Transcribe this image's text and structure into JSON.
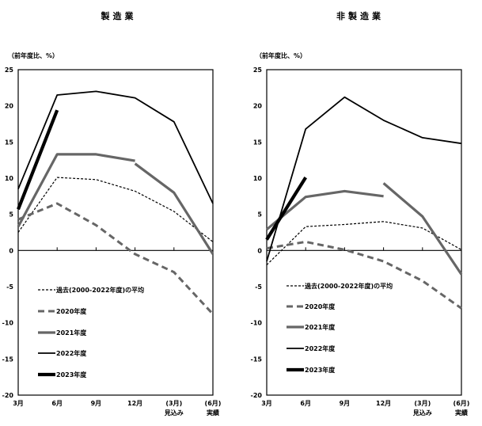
{
  "chart_data": [
    {
      "type": "line",
      "title": "製造業",
      "ylabel": "（前年度比、%）",
      "ylim": [
        -20,
        25
      ],
      "yticks": [
        "25",
        "20",
        "15",
        "10",
        "5",
        "0",
        "-5",
        "-10",
        "-15",
        "-20"
      ],
      "categories": [
        "3月",
        "6月",
        "9月",
        "12月",
        "(3月)",
        "(6月)"
      ],
      "category_sublabels": [
        "",
        "",
        "",
        "",
        "見込み",
        "実績"
      ],
      "grid": false,
      "legend_position": "bottom-left inside",
      "series": [
        {
          "name": "過去(2000-2022年度)の平均",
          "style": "dash-thin",
          "color": "#000000",
          "segments": [
            [
              2.5,
              10.1,
              9.8,
              8.2,
              5.4,
              1.2
            ]
          ]
        },
        {
          "name": "2020年度",
          "style": "dash-thick",
          "color": "#666666",
          "segments": [
            [
              4.3,
              6.5,
              3.5,
              -0.5,
              -3.0,
              -8.8
            ]
          ]
        },
        {
          "name": "2021年度",
          "style": "solid-thick",
          "color": "#666666",
          "segments": [
            [
              3.3,
              13.3,
              13.3,
              12.4,
              null,
              null
            ],
            [
              null,
              null,
              null,
              12.0,
              8.0,
              -0.5
            ]
          ]
        },
        {
          "name": "2022年度",
          "style": "solid",
          "color": "#000000",
          "segments": [
            [
              8.5,
              21.5,
              22.0,
              21.1,
              17.8,
              6.5
            ]
          ]
        },
        {
          "name": "2023年度",
          "style": "solid-heavy",
          "color": "#000000",
          "segments": [
            [
              5.7,
              19.4,
              null,
              null,
              null,
              null
            ]
          ]
        }
      ]
    },
    {
      "type": "line",
      "title": "非製造業",
      "ylabel": "（前年度比、%）",
      "ylim": [
        -20,
        25
      ],
      "yticks": [
        "25",
        "20",
        "15",
        "10",
        "5",
        "0",
        "-5",
        "-10",
        "-15",
        "-20"
      ],
      "categories": [
        "3月",
        "6月",
        "9月",
        "12月",
        "(3月)",
        "(6月)"
      ],
      "category_sublabels": [
        "",
        "",
        "",
        "",
        "見込み",
        "実績"
      ],
      "grid": false,
      "legend_position": "bottom-left inside",
      "series": [
        {
          "name": "過去(2000-2022年度)の平均",
          "style": "dash-thin",
          "color": "#000000",
          "segments": [
            [
              -2.0,
              3.3,
              3.6,
              4.0,
              3.1,
              0.1
            ]
          ]
        },
        {
          "name": "2020年度",
          "style": "dash-thick",
          "color": "#666666",
          "segments": [
            [
              0.3,
              1.2,
              0.1,
              -1.5,
              -4.2,
              -8.0
            ]
          ]
        },
        {
          "name": "2021年度",
          "style": "solid-thick",
          "color": "#666666",
          "segments": [
            [
              2.9,
              7.4,
              8.2,
              7.5,
              null,
              null
            ],
            [
              null,
              null,
              null,
              9.3,
              4.7,
              -3.3
            ]
          ]
        },
        {
          "name": "2022年度",
          "style": "solid",
          "color": "#000000",
          "segments": [
            [
              -1.5,
              16.8,
              21.2,
              18.0,
              15.6,
              14.8
            ]
          ]
        },
        {
          "name": "2023年度",
          "style": "solid-heavy",
          "color": "#000000",
          "segments": [
            [
              1.5,
              10.1,
              null,
              null,
              null,
              null
            ]
          ]
        }
      ]
    }
  ]
}
